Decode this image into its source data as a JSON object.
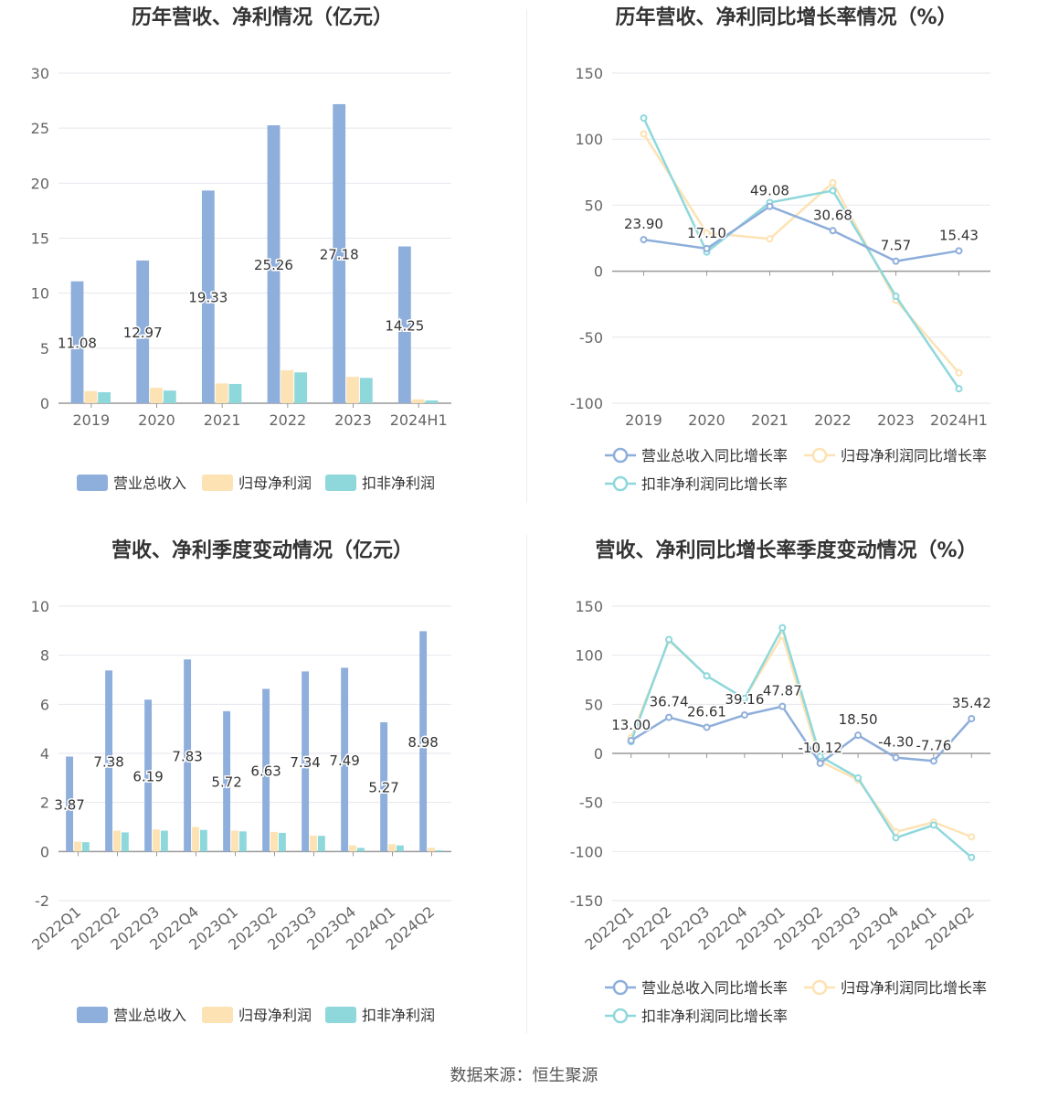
{
  "chart_data": [
    {
      "id": "annual-amount",
      "type": "bar",
      "title": "历年营收、净利情况（亿元）",
      "categories": [
        "2019",
        "2020",
        "2021",
        "2022",
        "2023",
        "2024H1"
      ],
      "ylim": [
        0,
        30
      ],
      "yticks": [
        0,
        5,
        10,
        15,
        20,
        25,
        30
      ],
      "grid": true,
      "legend_position": "bottom",
      "labeled_series": 0,
      "series": [
        {
          "name": "营业总收入",
          "color": "#8eaedb",
          "values": [
            11.08,
            12.97,
            19.33,
            25.26,
            27.18,
            14.25
          ]
        },
        {
          "name": "归母净利润",
          "color": "#fde2b3",
          "values": [
            1.1,
            1.4,
            1.8,
            3.0,
            2.4,
            0.35
          ]
        },
        {
          "name": "扣非净利润",
          "color": "#8ed8dc",
          "values": [
            1.0,
            1.15,
            1.75,
            2.8,
            2.3,
            0.25
          ]
        }
      ]
    },
    {
      "id": "annual-growth",
      "type": "line",
      "title": "历年营收、净利同比增长率情况（%）",
      "categories": [
        "2019",
        "2020",
        "2021",
        "2022",
        "2023",
        "2024H1"
      ],
      "ylim": [
        -100,
        150
      ],
      "yticks": [
        -100,
        -50,
        0,
        50,
        100,
        150
      ],
      "grid": true,
      "legend_position": "bottom",
      "labeled_series": 0,
      "series": [
        {
          "name": "营业总收入同比增长率",
          "color": "#8eaedb",
          "values": [
            23.9,
            17.1,
            49.08,
            30.68,
            7.57,
            15.43
          ]
        },
        {
          "name": "归母净利润同比增长率",
          "color": "#fde2b3",
          "values": [
            104,
            29,
            24.5,
            67,
            -22,
            -77
          ]
        },
        {
          "name": "扣非净利润同比增长率",
          "color": "#8ed8dc",
          "values": [
            116,
            14.5,
            52,
            61,
            -19,
            -89
          ]
        }
      ]
    },
    {
      "id": "quarterly-amount",
      "type": "bar",
      "title": "营收、净利季度变动情况（亿元）",
      "categories": [
        "2022Q1",
        "2022Q2",
        "2022Q3",
        "2022Q4",
        "2023Q1",
        "2023Q2",
        "2023Q3",
        "2023Q4",
        "2024Q1",
        "2024Q2"
      ],
      "ylim": [
        -2,
        10
      ],
      "yticks": [
        -2,
        0,
        2,
        4,
        6,
        8,
        10
      ],
      "grid": true,
      "legend_position": "bottom",
      "labeled_series": 0,
      "series": [
        {
          "name": "营业总收入",
          "color": "#8eaedb",
          "values": [
            3.87,
            7.38,
            6.19,
            7.83,
            5.72,
            6.63,
            7.34,
            7.49,
            5.27,
            8.98
          ]
        },
        {
          "name": "归母净利润",
          "color": "#fde2b3",
          "values": [
            0.4,
            0.85,
            0.9,
            1.0,
            0.85,
            0.8,
            0.65,
            0.25,
            0.3,
            0.15
          ]
        },
        {
          "name": "扣非净利润",
          "color": "#8ed8dc",
          "values": [
            0.38,
            0.78,
            0.85,
            0.88,
            0.82,
            0.76,
            0.64,
            0.15,
            0.25,
            0.05
          ]
        }
      ]
    },
    {
      "id": "quarterly-growth",
      "type": "line",
      "title": "营收、净利同比增长率季度变动情况（%）",
      "categories": [
        "2022Q1",
        "2022Q2",
        "2022Q3",
        "2022Q4",
        "2023Q1",
        "2023Q2",
        "2023Q3",
        "2023Q4",
        "2024Q1",
        "2024Q2"
      ],
      "ylim": [
        -150,
        150
      ],
      "yticks": [
        -150,
        -100,
        -50,
        0,
        50,
        100,
        150
      ],
      "grid": true,
      "legend_position": "bottom",
      "labeled_series": 0,
      "series": [
        {
          "name": "营业总收入同比增长率",
          "color": "#8eaedb",
          "values": [
            13.0,
            36.74,
            26.61,
            39.16,
            47.87,
            -10.12,
            18.5,
            -4.3,
            -7.76,
            35.42
          ]
        },
        {
          "name": "归母净利润同比增长率",
          "color": "#fde2b3",
          "values": [
            16,
            115,
            79,
            56,
            120,
            -8,
            -27,
            -80,
            -70,
            -85
          ]
        },
        {
          "name": "扣非净利润同比增长率",
          "color": "#8ed8dc",
          "values": [
            12,
            116,
            79,
            56,
            128,
            -3,
            -25,
            -86,
            -73,
            -106
          ]
        }
      ]
    }
  ],
  "source": "数据来源：恒生聚源"
}
